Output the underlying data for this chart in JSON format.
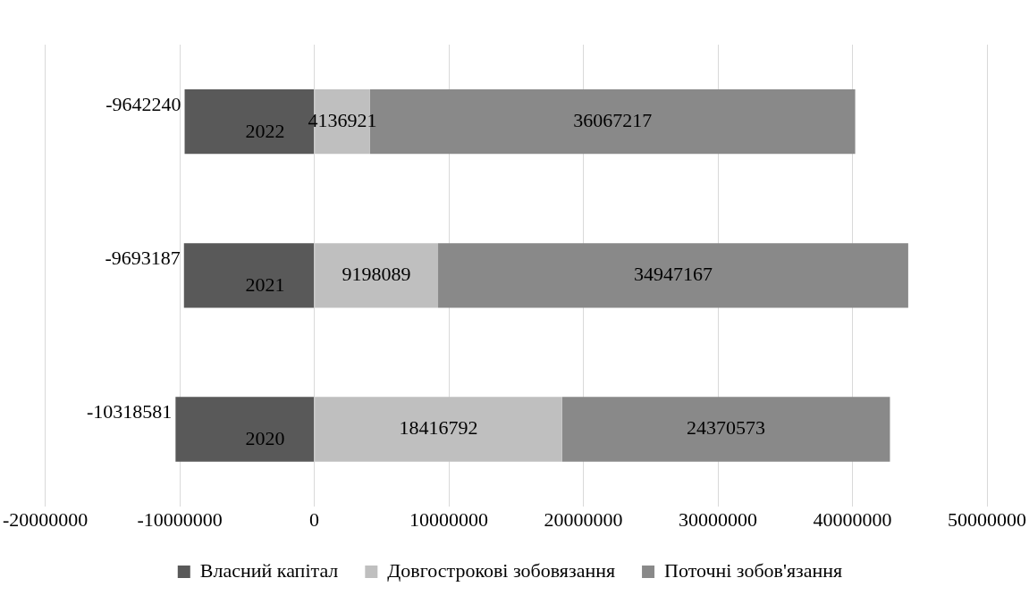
{
  "chart_data": {
    "type": "bar",
    "orientation": "horizontal",
    "stacked": true,
    "categories": [
      "2022",
      "2021",
      "2020"
    ],
    "series": [
      {
        "name": "Власний капітал",
        "color": "#595959",
        "values": [
          -9642240,
          -9693187,
          -10318581
        ]
      },
      {
        "name": "Довгострокові зобовязання",
        "color": "#bfbfbf",
        "values": [
          4136921,
          9198089,
          18416792
        ]
      },
      {
        "name": "Поточні зобов'язання",
        "color": "#898989",
        "values": [
          36067217,
          34947167,
          24370573
        ]
      }
    ],
    "xlim": [
      -20000000,
      50000000
    ],
    "xticks": [
      -20000000,
      -10000000,
      0,
      10000000,
      20000000,
      30000000,
      40000000,
      50000000
    ],
    "grid": "x",
    "legend": "bottom",
    "data_labels": true
  }
}
